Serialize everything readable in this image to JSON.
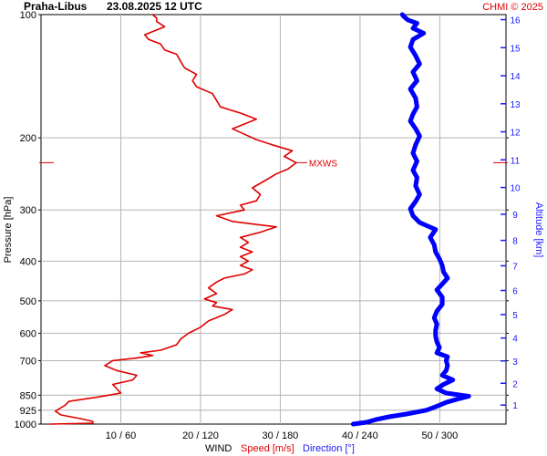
{
  "header": {
    "station": "Praha-Libus",
    "datetime": "23.08.2025 12 UTC",
    "copyright": "CHMI © 2025"
  },
  "colors": {
    "speed": "#e00000",
    "direction": "#0000ff",
    "grid": "#b4b4b4",
    "altitude_axis": "#1a1aff"
  },
  "chart_data": {
    "type": "line",
    "ylabel": "Pressure [hPa]",
    "y2label": "Altitude [km]",
    "xlabel_parts": {
      "wind": "WIND",
      "speed": "Speed [m/s]",
      "direction": "Direction [°]"
    },
    "y_scale": "log",
    "y_range_hpa": [
      1000,
      100
    ],
    "pressure_ticks": [
      100,
      200,
      300,
      400,
      500,
      600,
      700,
      850,
      925,
      1000
    ],
    "altitude_ticks_km": [
      1,
      2,
      3,
      4,
      5,
      6,
      7,
      8,
      9,
      10,
      11,
      12,
      13,
      14,
      15,
      16
    ],
    "x_ticks": [
      {
        "speed": 10,
        "direction": 60,
        "label": "10 / 60"
      },
      {
        "speed": 20,
        "direction": 120,
        "label": "20 / 120"
      },
      {
        "speed": 30,
        "direction": 180,
        "label": "30 / 180"
      },
      {
        "speed": 40,
        "direction": 240,
        "label": "40 / 240"
      },
      {
        "speed": 50,
        "direction": 300,
        "label": "50 / 300"
      }
    ],
    "speed_range_ms": [
      0,
      58.3
    ],
    "direction_range_deg": [
      0,
      350
    ],
    "annotation": {
      "label": "MXWS",
      "pressure": 230
    },
    "series": [
      {
        "name": "Speed [m/s]",
        "units": "m/s",
        "points": [
          [
            1000,
            1.2
          ],
          [
            995,
            6.5
          ],
          [
            985,
            6.5
          ],
          [
            970,
            5.0
          ],
          [
            950,
            2.5
          ],
          [
            930,
            1.8
          ],
          [
            900,
            3.0
          ],
          [
            880,
            3.5
          ],
          [
            860,
            7.0
          ],
          [
            840,
            10.0
          ],
          [
            820,
            9.5
          ],
          [
            800,
            9.0
          ],
          [
            780,
            11.5
          ],
          [
            760,
            12.0
          ],
          [
            740,
            9.5
          ],
          [
            720,
            8.0
          ],
          [
            700,
            9.0
          ],
          [
            690,
            12.0
          ],
          [
            680,
            14.0
          ],
          [
            670,
            12.5
          ],
          [
            660,
            15.0
          ],
          [
            640,
            17.0
          ],
          [
            620,
            17.5
          ],
          [
            600,
            18.5
          ],
          [
            580,
            20.0
          ],
          [
            560,
            21.0
          ],
          [
            540,
            23.0
          ],
          [
            525,
            24.0
          ],
          [
            515,
            21.5
          ],
          [
            505,
            22.0
          ],
          [
            495,
            20.5
          ],
          [
            480,
            22.0
          ],
          [
            465,
            21.0
          ],
          [
            450,
            22.0
          ],
          [
            440,
            23.0
          ],
          [
            430,
            25.5
          ],
          [
            420,
            26.5
          ],
          [
            410,
            25.0
          ],
          [
            400,
            26.0
          ],
          [
            390,
            25.0
          ],
          [
            380,
            26.5
          ],
          [
            370,
            25.0
          ],
          [
            360,
            26.0
          ],
          [
            350,
            25.0
          ],
          [
            340,
            27.5
          ],
          [
            330,
            29.5
          ],
          [
            320,
            24.0
          ],
          [
            310,
            22.0
          ],
          [
            300,
            25.5
          ],
          [
            292,
            25.0
          ],
          [
            285,
            27.0
          ],
          [
            275,
            27.5
          ],
          [
            265,
            26.5
          ],
          [
            255,
            28.0
          ],
          [
            245,
            29.5
          ],
          [
            238,
            31.0
          ],
          [
            230,
            32.0
          ],
          [
            222,
            30.5
          ],
          [
            215,
            31.5
          ],
          [
            208,
            29.0
          ],
          [
            202,
            27.0
          ],
          [
            196,
            25.5
          ],
          [
            190,
            24.0
          ],
          [
            185,
            25.5
          ],
          [
            180,
            27.0
          ],
          [
            174,
            25.0
          ],
          [
            168,
            22.5
          ],
          [
            162,
            22.0
          ],
          [
            156,
            21.5
          ],
          [
            150,
            19.5
          ],
          [
            145,
            19.0
          ],
          [
            140,
            19.5
          ],
          [
            135,
            18.0
          ],
          [
            130,
            17.5
          ],
          [
            125,
            17.0
          ],
          [
            122,
            15.5
          ],
          [
            118,
            15.0
          ],
          [
            115,
            13.5
          ],
          [
            112,
            13.0
          ],
          [
            110,
            14.0
          ],
          [
            107,
            15.5
          ],
          [
            104,
            14.5
          ],
          [
            102,
            14.5
          ],
          [
            100,
            14.0
          ]
        ]
      },
      {
        "name": "Direction [°]",
        "units": "deg",
        "points": [
          [
            1000,
            235
          ],
          [
            990,
            245
          ],
          [
            975,
            252
          ],
          [
            960,
            262
          ],
          [
            945,
            275
          ],
          [
            925,
            290
          ],
          [
            905,
            298
          ],
          [
            885,
            305
          ],
          [
            870,
            313
          ],
          [
            855,
            322
          ],
          [
            840,
            305
          ],
          [
            820,
            298
          ],
          [
            800,
            303
          ],
          [
            780,
            310
          ],
          [
            760,
            302
          ],
          [
            740,
            305
          ],
          [
            720,
            306
          ],
          [
            700,
            305
          ],
          [
            685,
            306
          ],
          [
            670,
            298
          ],
          [
            650,
            300
          ],
          [
            630,
            298
          ],
          [
            610,
            297
          ],
          [
            590,
            297
          ],
          [
            570,
            298
          ],
          [
            550,
            296
          ],
          [
            530,
            298
          ],
          [
            510,
            302
          ],
          [
            490,
            302
          ],
          [
            470,
            298
          ],
          [
            455,
            302
          ],
          [
            440,
            306
          ],
          [
            425,
            303
          ],
          [
            410,
            302
          ],
          [
            395,
            300
          ],
          [
            380,
            297
          ],
          [
            365,
            296
          ],
          [
            350,
            293
          ],
          [
            335,
            297
          ],
          [
            322,
            285
          ],
          [
            310,
            280
          ],
          [
            298,
            278
          ],
          [
            286,
            282
          ],
          [
            275,
            285
          ],
          [
            262,
            282
          ],
          [
            250,
            283
          ],
          [
            240,
            280
          ],
          [
            228,
            283
          ],
          [
            218,
            280
          ],
          [
            208,
            282
          ],
          [
            198,
            285
          ],
          [
            190,
            282
          ],
          [
            182,
            278
          ],
          [
            175,
            280
          ],
          [
            168,
            283
          ],
          [
            160,
            282
          ],
          [
            152,
            278
          ],
          [
            145,
            283
          ],
          [
            138,
            280
          ],
          [
            132,
            285
          ],
          [
            126,
            282
          ],
          [
            120,
            278
          ],
          [
            115,
            280
          ],
          [
            111,
            288
          ],
          [
            108,
            280
          ],
          [
            105,
            283
          ],
          [
            103,
            276
          ],
          [
            101,
            273
          ],
          [
            100,
            272
          ]
        ]
      }
    ]
  }
}
